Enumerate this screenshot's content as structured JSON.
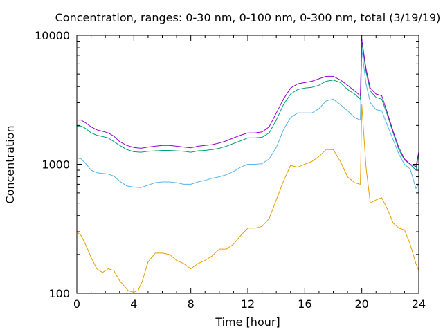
{
  "chart_data": {
    "type": "line",
    "title": "Concentration, ranges: 0-30 nm, 0-100 nm, 0-300 nm, total (3/19/19)",
    "xlabel": "Time [hour]",
    "ylabel": "Concentration",
    "xlim": [
      0,
      24
    ],
    "ylim": [
      100,
      10000
    ],
    "yscale": "log",
    "grid": false,
    "x_ticks": [
      "0",
      "4",
      "8",
      "12",
      "16",
      "20",
      "24"
    ],
    "x_tick_values": [
      0,
      4,
      8,
      12,
      16,
      20,
      24
    ],
    "y_ticks": [
      "100",
      "1000",
      "10000"
    ],
    "y_tick_values": [
      100,
      1000,
      10000
    ],
    "colors": {
      "series_0_30": "#e69f00",
      "series_0_100": "#56b4e9",
      "series_0_300": "#009e73",
      "series_total": "#9400d3"
    },
    "series": [
      {
        "key": "series_0_30",
        "x": [
          0,
          0.3,
          0.6,
          1.0,
          1.4,
          1.8,
          2.2,
          2.6,
          3.0,
          3.3,
          3.6,
          4.0,
          4.3,
          4.6,
          5.0,
          5.5,
          6.0,
          6.5,
          7.0,
          7.5,
          8.0,
          8.5,
          9.0,
          9.5,
          10.0,
          10.5,
          11.0,
          11.5,
          12.0,
          12.5,
          13.0,
          13.5,
          14.0,
          14.5,
          15.0,
          15.5,
          16.0,
          16.5,
          17.0,
          17.5,
          18.0,
          18.5,
          19.0,
          19.5,
          19.9,
          20.0,
          20.3,
          20.6,
          21.0,
          21.4,
          21.8,
          22.2,
          22.6,
          23.0,
          23.4,
          23.8,
          24.0
        ],
        "y": [
          300,
          280,
          240,
          190,
          155,
          145,
          155,
          150,
          125,
          115,
          105,
          102,
          105,
          125,
          175,
          205,
          205,
          200,
          180,
          170,
          155,
          170,
          180,
          195,
          220,
          220,
          240,
          280,
          320,
          320,
          330,
          380,
          530,
          740,
          980,
          950,
          1000,
          1050,
          1150,
          1300,
          1300,
          1050,
          800,
          720,
          700,
          2900,
          950,
          500,
          530,
          550,
          450,
          350,
          320,
          310,
          240,
          170,
          150
        ]
      },
      {
        "key": "series_0_100",
        "x": [
          0,
          0.3,
          0.6,
          1.0,
          1.4,
          1.8,
          2.2,
          2.6,
          3.0,
          3.5,
          4.0,
          4.5,
          5.0,
          5.5,
          6.0,
          6.5,
          7.0,
          7.5,
          8.0,
          8.5,
          9.0,
          9.5,
          10.0,
          10.5,
          11.0,
          11.5,
          12.0,
          12.5,
          13.0,
          13.5,
          14.0,
          14.5,
          15.0,
          15.5,
          16.0,
          16.5,
          17.0,
          17.5,
          18.0,
          18.5,
          19.0,
          19.5,
          19.9,
          20.0,
          20.3,
          20.6,
          21.0,
          21.4,
          21.8,
          22.2,
          22.6,
          23.0,
          23.4,
          23.8,
          24.0
        ],
        "y": [
          1120,
          1100,
          1020,
          900,
          860,
          850,
          840,
          810,
          740,
          680,
          665,
          660,
          690,
          720,
          730,
          730,
          720,
          700,
          700,
          730,
          750,
          780,
          800,
          830,
          880,
          950,
          1000,
          1000,
          1010,
          1100,
          1350,
          1850,
          2300,
          2500,
          2500,
          2500,
          2700,
          3100,
          3200,
          2900,
          2600,
          2300,
          2200,
          7800,
          4200,
          3000,
          2650,
          2600,
          2000,
          1550,
          1200,
          1000,
          920,
          650,
          700
        ]
      },
      {
        "key": "series_0_300",
        "x": [
          0,
          0.3,
          0.6,
          1.0,
          1.4,
          1.8,
          2.2,
          2.6,
          3.0,
          3.5,
          4.0,
          4.5,
          5.0,
          5.5,
          6.0,
          6.5,
          7.0,
          7.5,
          8.0,
          8.5,
          9.0,
          9.5,
          10.0,
          10.5,
          11.0,
          11.5,
          12.0,
          12.5,
          13.0,
          13.5,
          14.0,
          14.5,
          15.0,
          15.5,
          16.0,
          16.5,
          17.0,
          17.5,
          18.0,
          18.5,
          19.0,
          19.5,
          19.9,
          20.0,
          20.3,
          20.6,
          21.0,
          21.4,
          21.8,
          22.2,
          22.6,
          23.0,
          23.4,
          23.8,
          24.0
        ],
        "y": [
          1980,
          1980,
          1900,
          1750,
          1680,
          1640,
          1600,
          1500,
          1400,
          1300,
          1250,
          1240,
          1260,
          1270,
          1280,
          1280,
          1270,
          1260,
          1240,
          1270,
          1280,
          1300,
          1330,
          1380,
          1450,
          1520,
          1600,
          1600,
          1620,
          1750,
          2200,
          2900,
          3500,
          3800,
          3900,
          3950,
          4100,
          4400,
          4500,
          4300,
          3800,
          3500,
          3200,
          8800,
          5200,
          3700,
          3300,
          3200,
          2400,
          1750,
          1300,
          1080,
          1000,
          900,
          1200
        ]
      },
      {
        "key": "series_total",
        "x": [
          0,
          0.3,
          0.6,
          1.0,
          1.4,
          1.8,
          2.2,
          2.6,
          3.0,
          3.5,
          4.0,
          4.5,
          5.0,
          5.5,
          6.0,
          6.5,
          7.0,
          7.5,
          8.0,
          8.5,
          9.0,
          9.5,
          10.0,
          10.5,
          11.0,
          11.5,
          12.0,
          12.5,
          13.0,
          13.5,
          14.0,
          14.5,
          15.0,
          15.5,
          16.0,
          16.5,
          17.0,
          17.5,
          18.0,
          18.5,
          19.0,
          19.5,
          19.9,
          20.0,
          20.3,
          20.6,
          21.0,
          21.4,
          21.8,
          22.2,
          22.6,
          23.0,
          23.4,
          23.8,
          24.0
        ],
        "y": [
          2200,
          2200,
          2100,
          1950,
          1850,
          1800,
          1750,
          1650,
          1500,
          1400,
          1350,
          1330,
          1360,
          1380,
          1400,
          1400,
          1380,
          1360,
          1340,
          1380,
          1400,
          1420,
          1460,
          1520,
          1600,
          1680,
          1750,
          1750,
          1780,
          1950,
          2500,
          3200,
          3900,
          4200,
          4300,
          4400,
          4600,
          4800,
          4800,
          4500,
          4100,
          3700,
          3400,
          9300,
          5500,
          3900,
          3500,
          3400,
          2500,
          1800,
          1350,
          1100,
          1000,
          960,
          1250
        ]
      }
    ]
  }
}
